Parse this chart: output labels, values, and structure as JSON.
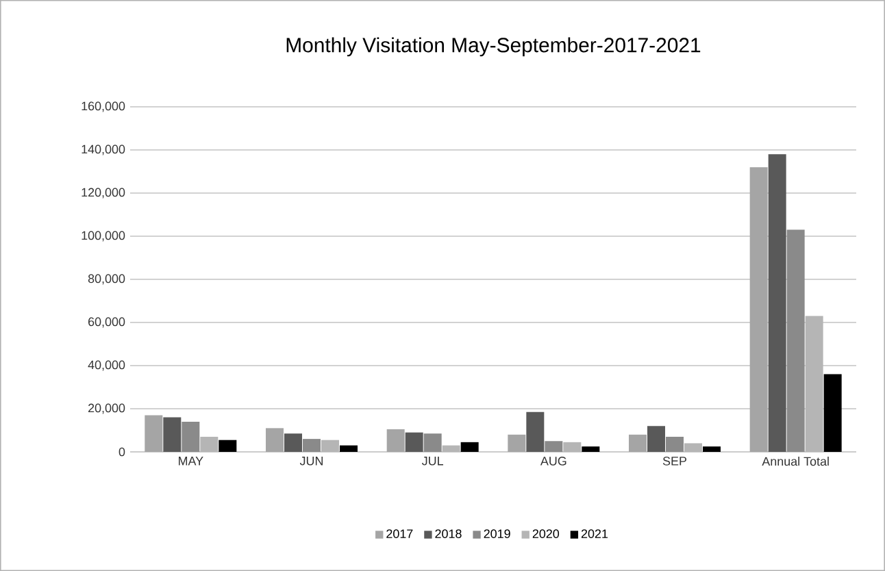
{
  "chart_data": {
    "type": "bar",
    "title": "Monthly Visitation May-September-2017-2021",
    "categories": [
      "MAY",
      "JUN",
      "JUL",
      "AUG",
      "SEP",
      "Annual Total"
    ],
    "series": [
      {
        "name": "2017",
        "color": "#a5a5a5",
        "values": [
          17000,
          11000,
          10500,
          8000,
          8000,
          132000
        ]
      },
      {
        "name": "2018",
        "color": "#595959",
        "values": [
          16000,
          8500,
          9000,
          18500,
          12000,
          138000
        ]
      },
      {
        "name": "2019",
        "color": "#8a8a8a",
        "values": [
          14000,
          6000,
          8500,
          5000,
          7000,
          103000
        ]
      },
      {
        "name": "2020",
        "color": "#b5b5b5",
        "values": [
          7000,
          5500,
          3000,
          4500,
          4000,
          63000
        ]
      },
      {
        "name": "2021",
        "color": "#000000",
        "values": [
          5500,
          3000,
          4500,
          2500,
          2500,
          36000
        ]
      }
    ],
    "ylim": [
      0,
      160000
    ],
    "yticks": [
      {
        "value": 0,
        "label": "0"
      },
      {
        "value": 20000,
        "label": "20,000"
      },
      {
        "value": 40000,
        "label": "40,000"
      },
      {
        "value": 60000,
        "label": "60,000"
      },
      {
        "value": 80000,
        "label": "80,000"
      },
      {
        "value": 100000,
        "label": "100,000"
      },
      {
        "value": 120000,
        "label": "120,000"
      },
      {
        "value": 140000,
        "label": "140,000"
      },
      {
        "value": 160000,
        "label": "160,000"
      }
    ],
    "grid": "y",
    "legend": "bottom"
  }
}
